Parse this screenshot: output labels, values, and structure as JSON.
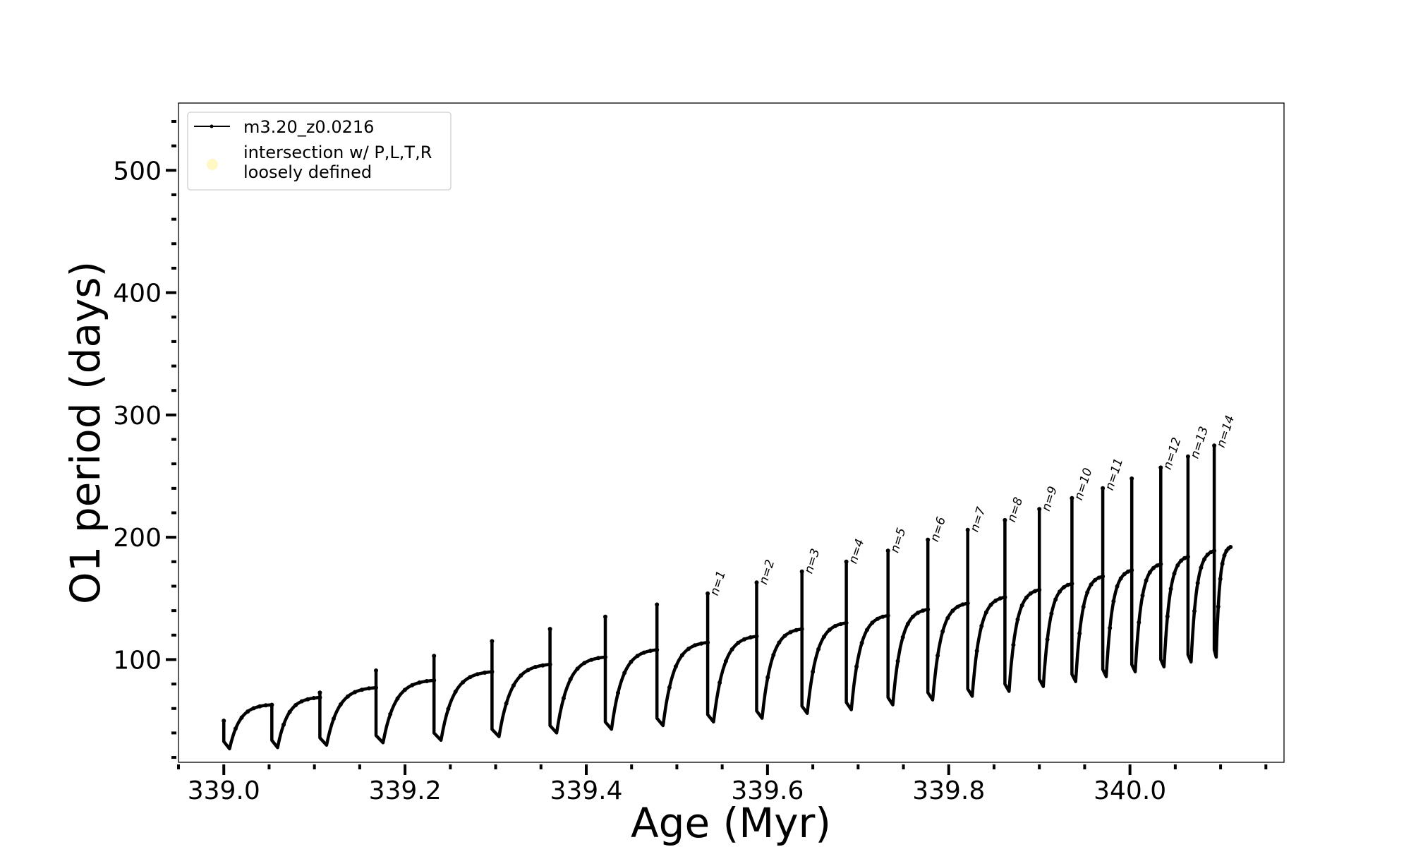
{
  "chart_data": {
    "type": "line",
    "xlabel": "Age (Myr)",
    "ylabel": "O1 period (days)",
    "xlim": [
      338.95,
      340.17
    ],
    "ylim": [
      16,
      555
    ],
    "x_ticks": [
      339.0,
      339.2,
      339.4,
      339.6,
      339.8,
      340.0
    ],
    "x_tick_labels": [
      "339.0",
      "339.2",
      "339.4",
      "339.6",
      "339.8",
      "340.0"
    ],
    "y_ticks": [
      100,
      200,
      300,
      400,
      500
    ],
    "y_tick_labels": [
      "100",
      "200",
      "300",
      "400",
      "500"
    ],
    "x_minor_step": 0.05,
    "y_minor_step": 20,
    "grid": false,
    "legend": {
      "placement": "top-left",
      "entries": [
        {
          "label": "m3.20_z0.0216",
          "marker": "line-with-dot",
          "color": "#000000"
        },
        {
          "label_lines": [
            "intersection w/ P,L,T,R",
            "loosely defined"
          ],
          "marker": "circle",
          "color": "#fff5b0"
        }
      ]
    },
    "series": [
      {
        "name": "m3.20_z0.0216",
        "color": "#000000",
        "cycles": [
          {
            "start": 339.0,
            "peak": 50,
            "dip": 27,
            "end": 339.053,
            "plateau": 63
          },
          {
            "start": 339.053,
            "peak": 63,
            "dip": 28,
            "end": 339.106,
            "plateau": 69
          },
          {
            "start": 339.106,
            "peak": 73,
            "dip": 30,
            "end": 339.168,
            "plateau": 77
          },
          {
            "start": 339.168,
            "peak": 91,
            "dip": 32,
            "end": 339.232,
            "plateau": 83
          },
          {
            "start": 339.232,
            "peak": 103,
            "dip": 34,
            "end": 339.296,
            "plateau": 90
          },
          {
            "start": 339.296,
            "peak": 115,
            "dip": 37,
            "end": 339.36,
            "plateau": 96
          },
          {
            "start": 339.36,
            "peak": 125,
            "dip": 40,
            "end": 339.421,
            "plateau": 102
          },
          {
            "start": 339.421,
            "peak": 135,
            "dip": 43,
            "end": 339.478,
            "plateau": 108
          },
          {
            "start": 339.478,
            "peak": 145,
            "dip": 46,
            "end": 339.534,
            "plateau": 114
          },
          {
            "start": 339.534,
            "peak": 154,
            "dip": 49,
            "end": 339.588,
            "plateau": 119
          },
          {
            "start": 339.588,
            "peak": 163,
            "dip": 52,
            "end": 339.638,
            "plateau": 125
          },
          {
            "start": 339.638,
            "peak": 172,
            "dip": 56,
            "end": 339.687,
            "plateau": 130
          },
          {
            "start": 339.687,
            "peak": 180,
            "dip": 59,
            "end": 339.733,
            "plateau": 136
          },
          {
            "start": 339.733,
            "peak": 189,
            "dip": 63,
            "end": 339.777,
            "plateau": 141
          },
          {
            "start": 339.777,
            "peak": 198,
            "dip": 67,
            "end": 339.821,
            "plateau": 146
          },
          {
            "start": 339.821,
            "peak": 206,
            "dip": 70,
            "end": 339.862,
            "plateau": 151
          },
          {
            "start": 339.862,
            "peak": 214,
            "dip": 74,
            "end": 339.9,
            "plateau": 157
          },
          {
            "start": 339.9,
            "peak": 223,
            "dip": 78,
            "end": 339.936,
            "plateau": 162
          },
          {
            "start": 339.936,
            "peak": 232,
            "dip": 82,
            "end": 339.97,
            "plateau": 168
          },
          {
            "start": 339.97,
            "peak": 240,
            "dip": 86,
            "end": 340.002,
            "plateau": 173
          },
          {
            "start": 340.002,
            "peak": 248,
            "dip": 90,
            "end": 340.034,
            "plateau": 178
          },
          {
            "start": 340.034,
            "peak": 257,
            "dip": 94,
            "end": 340.064,
            "plateau": 184
          },
          {
            "start": 340.064,
            "peak": 266,
            "dip": 98,
            "end": 340.093,
            "plateau": 189
          },
          {
            "start": 340.093,
            "peak": 275,
            "dip": 102,
            "end": 340.111,
            "plateau": 192
          }
        ]
      }
    ],
    "annotations": [
      {
        "text": "n=1",
        "x": 339.534,
        "y": 154
      },
      {
        "text": "n=2",
        "x": 339.588,
        "y": 163
      },
      {
        "text": "n=3",
        "x": 339.638,
        "y": 172
      },
      {
        "text": "n=4",
        "x": 339.687,
        "y": 180
      },
      {
        "text": "n=5",
        "x": 339.733,
        "y": 189
      },
      {
        "text": "n=6",
        "x": 339.777,
        "y": 198
      },
      {
        "text": "n=7",
        "x": 339.821,
        "y": 206
      },
      {
        "text": "n=8",
        "x": 339.862,
        "y": 214
      },
      {
        "text": "n=9",
        "x": 339.9,
        "y": 223
      },
      {
        "text": "n=10",
        "x": 339.936,
        "y": 232
      },
      {
        "text": "n=11",
        "x": 339.97,
        "y": 240
      },
      {
        "text": "n=12",
        "x": 340.034,
        "y": 257
      },
      {
        "text": "n=13",
        "x": 340.064,
        "y": 266
      },
      {
        "text": "n=14",
        "x": 340.093,
        "y": 275
      }
    ]
  }
}
